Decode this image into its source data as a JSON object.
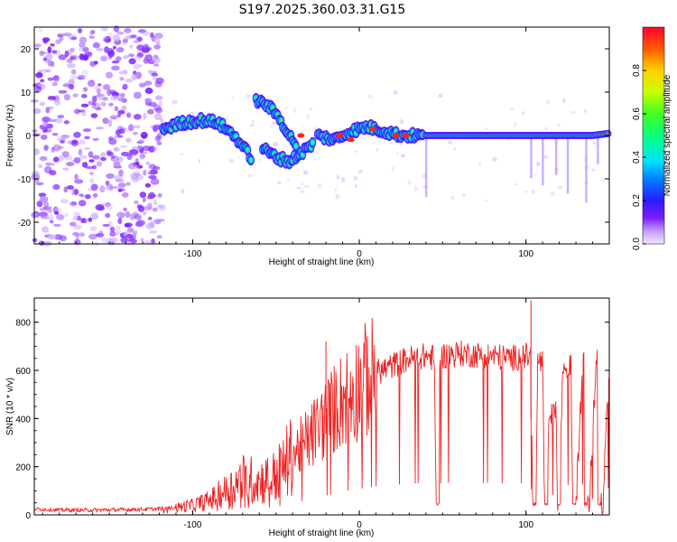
{
  "title": "S197.2025.360.03.31.G15",
  "chart_data": [
    {
      "type": "heatmap",
      "name": "spectrogram",
      "xlabel": "Height of straight line (km)",
      "ylabel": "Frequency (Hz)",
      "xlim": [
        -195,
        150
      ],
      "ylim": [
        -25,
        25
      ],
      "xticks": [
        -100,
        0,
        100
      ],
      "xtick_labels": [
        "-100",
        "0",
        "100"
      ],
      "yticks": [
        -20,
        -10,
        0,
        10,
        20
      ],
      "ytick_labels": [
        "-20",
        "-10",
        "0",
        "10",
        "20"
      ],
      "colorbar": {
        "label": "Normalized spectral amplitude",
        "range": [
          0,
          1
        ],
        "ticks": [
          0.0,
          0.2,
          0.4,
          0.6,
          0.8
        ],
        "tick_labels": [
          "0.0",
          "0.2",
          "0.4",
          "0.6",
          "0.8"
        ]
      },
      "ridge_segments": [
        {
          "x": [
            -118,
            -105,
            -95,
            -85,
            -75,
            -65
          ],
          "y": [
            1.5,
            3,
            3.5,
            3,
            0,
            -5
          ]
        },
        {
          "x": [
            -62,
            -55,
            -48,
            -42,
            -38
          ],
          "y": [
            8,
            7,
            4,
            0,
            -2
          ]
        },
        {
          "x": [
            -58,
            -50,
            -42,
            -35,
            -28
          ],
          "y": [
            -3,
            -5,
            -6,
            -4,
            -2
          ]
        },
        {
          "x": [
            -25,
            -15,
            -5,
            5,
            15,
            25,
            38
          ],
          "y": [
            0,
            -1,
            1,
            2,
            1,
            0,
            0
          ]
        },
        {
          "x": [
            40,
            60,
            80,
            100,
            120,
            140,
            150
          ],
          "y": [
            0,
            0,
            0,
            0,
            0,
            0,
            0.5
          ]
        }
      ]
    },
    {
      "type": "line",
      "name": "snr",
      "xlabel": "Height of straight line (km)",
      "ylabel": "SNR (10 * v/v)",
      "xlim": [
        -195,
        150
      ],
      "ylim": [
        0,
        900
      ],
      "xticks": [
        -100,
        0,
        100
      ],
      "xtick_labels": [
        "-100",
        "0",
        "100"
      ],
      "yticks": [
        0,
        200,
        400,
        600,
        800
      ],
      "ytick_labels": [
        "0",
        "200",
        "400",
        "600",
        "800"
      ],
      "series": [
        {
          "name": "SNR",
          "color": "#ee2222",
          "x": [
            -195,
            -180,
            -160,
            -140,
            -120,
            -110,
            -100,
            -90,
            -80,
            -70,
            -60,
            -50,
            -40,
            -30,
            -20,
            -10,
            0,
            10,
            20,
            30,
            40,
            45,
            46,
            47,
            48,
            50,
            60,
            70,
            80,
            90,
            100,
            103,
            104,
            106,
            107,
            110,
            111,
            112,
            114,
            118,
            119,
            120,
            122,
            125,
            127,
            128,
            130,
            134,
            135,
            136,
            138,
            142,
            143,
            144,
            146,
            150
          ],
          "y": [
            25,
            20,
            20,
            22,
            25,
            30,
            40,
            60,
            100,
            150,
            140,
            160,
            250,
            320,
            400,
            480,
            540,
            590,
            620,
            650,
            660,
            650,
            50,
            50,
            640,
            660,
            670,
            665,
            660,
            650,
            660,
            655,
            40,
            40,
            640,
            630,
            40,
            40,
            400,
            420,
            40,
            40,
            600,
            620,
            610,
            40,
            40,
            630,
            620,
            40,
            40,
            640,
            630,
            40,
            40,
            650
          ]
        }
      ],
      "annotations": [
        {
          "x": -20,
          "y": 720,
          "text": ""
        },
        {
          "x": 103,
          "y": 890,
          "text": ""
        }
      ]
    }
  ],
  "colors": {
    "snr_line": "#ee2222",
    "noise_scatter": "#a050ff"
  }
}
